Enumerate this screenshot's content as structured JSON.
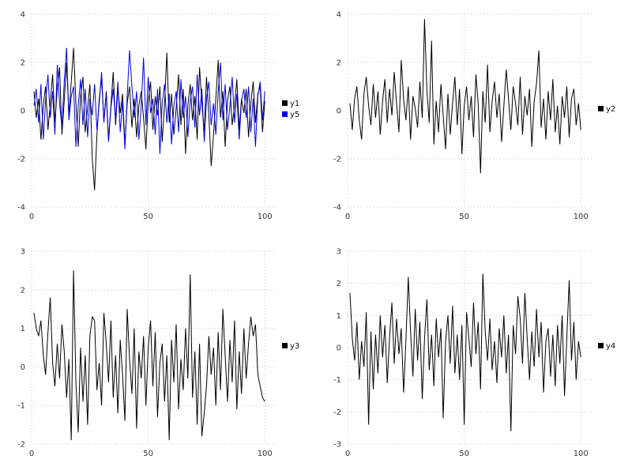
{
  "page": {
    "background": "#ffffff",
    "grid_color": "#c8c8c8",
    "tick_color": "#333333"
  },
  "chart_data": [
    {
      "type": "line",
      "panel": "top-left",
      "title": "",
      "xlabel": "",
      "ylabel": "",
      "xlim": [
        0,
        105
      ],
      "ylim": [
        -4,
        4
      ],
      "x_ticks": [
        0,
        50,
        100
      ],
      "y_ticks": [
        -4,
        -2,
        0,
        2,
        4
      ],
      "grid": true,
      "legend_position": "right-center",
      "legend": [
        "y1",
        "y5"
      ],
      "series": [
        {
          "name": "y1",
          "color": "#000000",
          "values": [
            0.8,
            -0.3,
            0.5,
            -1.2,
            0.2,
            1.0,
            -0.8,
            0.3,
            1.5,
            -0.5,
            0.9,
            1.8,
            -1.0,
            0.4,
            2.0,
            -0.2,
            1.2,
            2.6,
            0.3,
            -1.5,
            0.6,
            1.4,
            -0.9,
            0.1,
            1.1,
            -2.0,
            -3.3,
            -1.0,
            0.5,
            1.3,
            -0.4,
            0.8,
            -1.2,
            0.2,
            1.6,
            -0.6,
            0.9,
            -0.1,
            0.7,
            -1.4,
            0.3,
            1.0,
            -0.7,
            0.5,
            -1.1,
            0.2,
            0.8,
            -0.3,
            -1.6,
            0.4,
            1.2,
            -0.8,
            0.6,
            -0.2,
            1.0,
            -1.3,
            0.3,
            2.4,
            -0.5,
            0.7,
            -1.0,
            0.1,
            1.5,
            -0.6,
            0.9,
            -1.8,
            0.2,
            1.1,
            -0.4,
            0.6,
            -1.2,
            1.8,
            0.3,
            -0.9,
            1.4,
            -0.2,
            -2.3,
            -1.0,
            0.5,
            2.1,
            -0.3,
            0.8,
            -1.5,
            0.4,
            1.0,
            -0.6,
            0.2,
            1.3,
            -0.8,
            0.5,
            -0.1,
            0.9,
            -1.1,
            0.3,
            1.2,
            -0.5,
            0.7,
            1.0,
            -0.9,
            0.4
          ]
        },
        {
          "name": "y5",
          "color": "#0000ee",
          "values": [
            0.2,
            0.9,
            -0.5,
            1.1,
            -1.2,
            0.4,
            1.5,
            -0.3,
            0.8,
            -1.0,
            1.9,
            0.3,
            -0.7,
            1.2,
            2.6,
            -0.4,
            0.6,
            1.0,
            -1.5,
            0.2,
            1.3,
            -0.6,
            0.9,
            -1.1,
            0.5,
            -0.2,
            1.1,
            -0.8,
            0.3,
            1.6,
            -0.5,
            0.7,
            -1.3,
            0.1,
            0.9,
            -0.4,
            1.2,
            -0.9,
            0.4,
            -1.6,
            0.6,
            2.5,
            1.0,
            -0.3,
            0.8,
            -1.2,
            0.2,
            2.2,
            -0.6,
            1.4,
            -0.1,
            0.5,
            -1.0,
            0.9,
            -1.8,
            0.3,
            1.1,
            -0.5,
            0.7,
            -1.4,
            0.2,
            0.8,
            -0.9,
            1.3,
            -0.3,
            0.6,
            -1.1,
            0.4,
            1.0,
            -0.7,
            1.5,
            -0.2,
            0.9,
            -1.3,
            0.5,
            1.2,
            -0.6,
            0.3,
            -1.0,
            0.8,
            2.0,
            -0.4,
            1.1,
            -0.8,
            0.2,
            1.4,
            -0.5,
            0.7,
            -1.2,
            0.4,
            0.9,
            -0.3,
            1.0,
            -0.9,
            0.5,
            -1.5,
            0.6,
            1.2,
            -0.4,
            0.8
          ]
        }
      ]
    },
    {
      "type": "line",
      "panel": "top-right",
      "title": "",
      "xlabel": "",
      "ylabel": "",
      "xlim": [
        0,
        105
      ],
      "ylim": [
        -4,
        4
      ],
      "x_ticks": [
        0,
        50,
        100
      ],
      "y_ticks": [
        -4,
        -2,
        0,
        2,
        4
      ],
      "grid": true,
      "legend_position": "right-center",
      "legend": [
        "y2"
      ],
      "series": [
        {
          "name": "y2",
          "color": "#000000",
          "values": [
            0.3,
            -0.8,
            0.5,
            1.0,
            -0.4,
            -1.2,
            0.7,
            1.4,
            0.2,
            -0.6,
            1.1,
            -0.3,
            0.8,
            -1.0,
            0.4,
            1.3,
            -0.5,
            0.9,
            -0.2,
            1.6,
            0.3,
            -0.9,
            2.1,
            0.5,
            -0.4,
            1.0,
            -1.2,
            0.6,
            0.1,
            -0.7,
            1.2,
            -0.3,
            3.8,
            0.8,
            -0.5,
            2.9,
            -1.4,
            0.4,
            -0.9,
            1.1,
            -0.2,
            -1.6,
            0.7,
            -1.0,
            0.3,
            1.4,
            -0.6,
            0.9,
            -1.8,
            0.2,
            1.0,
            -0.4,
            0.6,
            -1.1,
            1.5,
            0.3,
            -2.6,
            0.8,
            -0.5,
            1.9,
            -0.9,
            0.4,
            1.2,
            -0.3,
            0.7,
            -1.3,
            0.2,
            1.7,
            0.5,
            -0.8,
            1.0,
            0.3,
            -0.6,
            1.4,
            -1.0,
            0.6,
            -0.2,
            0.9,
            -1.5,
            0.4,
            1.1,
            2.5,
            -0.7,
            0.5,
            -1.2,
            0.8,
            -0.4,
            1.3,
            -0.9,
            0.2,
            -1.4,
            0.6,
            -0.3,
            1.0,
            -1.1,
            0.5,
            0.9,
            -0.6,
            0.3,
            -0.8
          ]
        }
      ]
    },
    {
      "type": "line",
      "panel": "bottom-left",
      "title": "",
      "xlabel": "",
      "ylabel": "",
      "xlim": [
        0,
        105
      ],
      "ylim": [
        -2,
        3
      ],
      "x_ticks": [
        0,
        50,
        100
      ],
      "y_ticks": [
        -2,
        -1,
        0,
        1,
        2,
        3
      ],
      "grid": true,
      "legend_position": "right-center",
      "legend": [
        "y3"
      ],
      "series": [
        {
          "name": "y3",
          "color": "#000000",
          "values": [
            1.4,
            1.0,
            0.8,
            1.2,
            0.3,
            -0.2,
            0.9,
            1.8,
            0.1,
            -0.5,
            0.6,
            -0.3,
            1.1,
            0.4,
            -0.8,
            0.2,
            -1.9,
            2.5,
            -0.4,
            -1.7,
            0.5,
            -0.9,
            0.3,
            -1.5,
            0.8,
            1.3,
            1.2,
            -0.6,
            0.1,
            -1.0,
            1.4,
            0.6,
            -0.4,
            1.2,
            -0.8,
            0.3,
            -1.2,
            0.7,
            -0.2,
            -1.4,
            1.5,
            0.2,
            -0.7,
            1.0,
            -1.6,
            0.4,
            -0.3,
            0.8,
            -1.0,
            0.5,
            1.2,
            -0.5,
            0.9,
            -1.3,
            0.1,
            0.6,
            -0.9,
            0.3,
            -1.9,
            0.7,
            -0.4,
            1.1,
            -1.1,
            0.2,
            -0.6,
            1.0,
            -0.3,
            2.4,
            -0.8,
            0.4,
            -1.5,
            0.6,
            -1.8,
            -1.2,
            -0.5,
            0.8,
            -0.2,
            0.5,
            -1.0,
            0.9,
            -0.6,
            1.5,
            0.3,
            -0.9,
            0.7,
            -0.4,
            1.2,
            -1.1,
            0.4,
            -0.7,
            1.0,
            -0.3,
            0.6,
            1.3,
            0.8,
            1.1,
            -0.2,
            -0.5,
            -0.8,
            -0.9
          ]
        }
      ]
    },
    {
      "type": "line",
      "panel": "bottom-right",
      "title": "",
      "xlabel": "",
      "ylabel": "",
      "xlim": [
        0,
        105
      ],
      "ylim": [
        -3,
        3
      ],
      "x_ticks": [
        0,
        50,
        100
      ],
      "y_ticks": [
        -3,
        -2,
        -1,
        0,
        1,
        2,
        3
      ],
      "grid": true,
      "legend_position": "right-center",
      "legend": [
        "y4"
      ],
      "series": [
        {
          "name": "y4",
          "color": "#000000",
          "values": [
            1.7,
            0.3,
            -0.4,
            0.8,
            -1.0,
            0.2,
            -0.6,
            1.1,
            -2.4,
            0.5,
            -1.3,
            0.4,
            -0.8,
            1.0,
            -0.3,
            0.7,
            -1.1,
            0.3,
            1.4,
            -0.5,
            0.9,
            -0.2,
            0.6,
            -1.4,
            0.2,
            2.2,
            0.5,
            -0.9,
            1.2,
            -0.4,
            0.8,
            -1.6,
            0.3,
            1.5,
            -0.7,
            0.4,
            -1.2,
            0.9,
            -0.3,
            0.6,
            -2.2,
            0.2,
            1.0,
            -0.5,
            1.3,
            -0.8,
            0.4,
            -1.0,
            0.7,
            -2.4,
            1.1,
            0.3,
            -0.6,
            1.4,
            -0.2,
            0.8,
            -1.3,
            2.3,
            0.5,
            -0.4,
            0.9,
            -0.7,
            0.2,
            -1.1,
            0.6,
            -0.3,
            1.0,
            -0.8,
            0.4,
            -2.6,
            0.7,
            -0.2,
            1.6,
            0.9,
            -0.5,
            1.7,
            0.3,
            -1.0,
            0.5,
            -0.6,
            1.2,
            -0.3,
            0.8,
            -1.4,
            0.2,
            0.6,
            -0.9,
            0.4,
            -1.2,
            0.7,
            -0.5,
            1.0,
            -1.5,
            0.3,
            2.1,
            -0.4,
            0.8,
            -1.0,
            0.2,
            -0.3
          ]
        }
      ]
    }
  ]
}
